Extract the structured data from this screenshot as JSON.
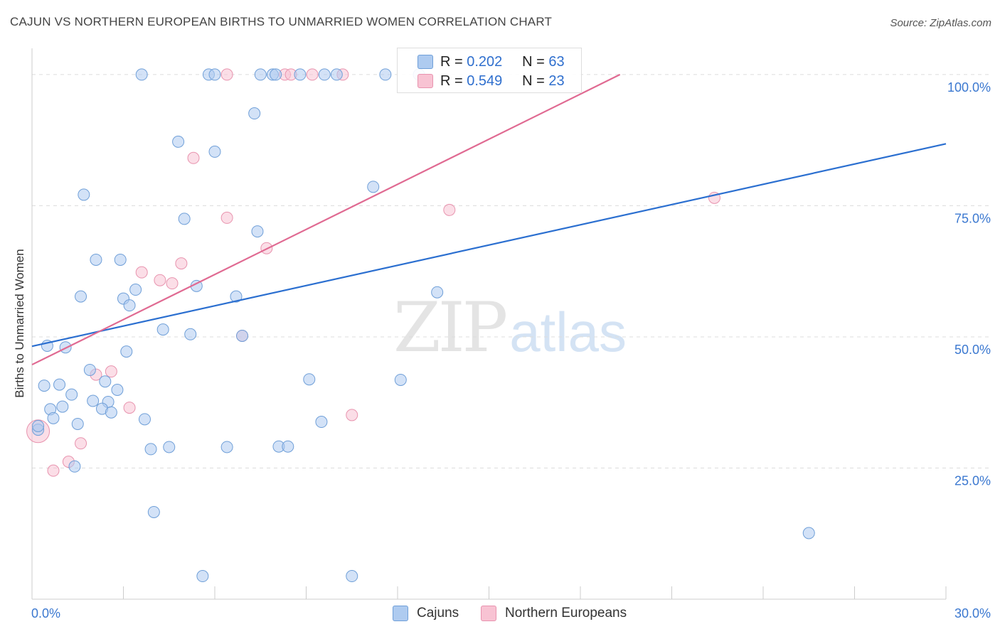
{
  "header": {
    "title": "CAJUN VS NORTHERN EUROPEAN BIRTHS TO UNMARRIED WOMEN CORRELATION CHART",
    "source": "Source: ZipAtlas.com"
  },
  "watermark": {
    "zip": "ZIP",
    "atlas": "atlas"
  },
  "legend": {
    "rows": [
      {
        "r_label": "R =",
        "r_value": "0.202",
        "n_label": "N =",
        "n_value": "63"
      },
      {
        "r_label": "R =",
        "r_value": "0.549",
        "n_label": "N =",
        "n_value": "23"
      }
    ]
  },
  "bottom_legend": {
    "cajuns": "Cajuns",
    "northern": "Northern Europeans"
  },
  "colors": {
    "cajun_fill": "#aecbf0",
    "cajun_stroke": "#6f9fd8",
    "cajun_line": "#2b6fd0",
    "northern_fill": "#f8c3d3",
    "northern_stroke": "#e893ae",
    "northern_line": "#e06a92",
    "tick_label": "#3b78d0",
    "grid": "#dcdcdc"
  },
  "chart_data": {
    "type": "scatter",
    "title": "CAJUN VS NORTHERN EUROPEAN BIRTHS TO UNMARRIED WOMEN CORRELATION CHART",
    "xlabel": "",
    "ylabel": "Births to Unmarried Women",
    "xlim": [
      0,
      30
    ],
    "ylim": [
      0,
      105
    ],
    "x_tick_labels": {
      "left": "0.0%",
      "right": "30.0%"
    },
    "y_ticks": [
      {
        "value": 100,
        "label": "100.0%"
      },
      {
        "value": 75,
        "label": "75.0%"
      },
      {
        "value": 50,
        "label": "50.0%"
      },
      {
        "value": 25,
        "label": "25.0%"
      }
    ],
    "series": [
      {
        "name": "Cajuns",
        "R": 0.202,
        "N": 63,
        "trend": {
          "x": [
            0,
            30
          ],
          "y": [
            48.2,
            86.8
          ]
        },
        "points": [
          [
            3.6,
            100
          ],
          [
            5.8,
            100
          ],
          [
            6.0,
            100
          ],
          [
            7.5,
            100
          ],
          [
            7.9,
            100
          ],
          [
            8.0,
            100
          ],
          [
            8.8,
            100
          ],
          [
            9.6,
            100
          ],
          [
            11.6,
            100
          ],
          [
            12.7,
            100
          ],
          [
            7.3,
            92.6
          ],
          [
            4.8,
            87.2
          ],
          [
            6.0,
            85.3
          ],
          [
            11.2,
            78.6
          ],
          [
            1.7,
            77.1
          ],
          [
            5.0,
            72.5
          ],
          [
            7.4,
            70.1
          ],
          [
            2.1,
            64.7
          ],
          [
            2.9,
            64.7
          ],
          [
            5.4,
            59.7
          ],
          [
            3.4,
            59.0
          ],
          [
            1.6,
            57.7
          ],
          [
            6.7,
            57.7
          ],
          [
            3.0,
            57.3
          ],
          [
            3.2,
            56.0
          ],
          [
            13.3,
            58.5
          ],
          [
            4.3,
            51.4
          ],
          [
            5.2,
            50.5
          ],
          [
            6.9,
            50.2
          ],
          [
            0.5,
            48.3
          ],
          [
            1.1,
            48.0
          ],
          [
            3.1,
            47.2
          ],
          [
            1.9,
            43.7
          ],
          [
            2.4,
            41.5
          ],
          [
            0.4,
            40.7
          ],
          [
            0.9,
            40.9
          ],
          [
            2.8,
            39.9
          ],
          [
            12.1,
            41.8
          ],
          [
            9.1,
            41.9
          ],
          [
            1.3,
            39.0
          ],
          [
            2.0,
            37.8
          ],
          [
            2.5,
            37.6
          ],
          [
            0.6,
            36.2
          ],
          [
            1.0,
            36.7
          ],
          [
            2.3,
            36.3
          ],
          [
            2.6,
            35.6
          ],
          [
            0.7,
            34.5
          ],
          [
            3.7,
            34.3
          ],
          [
            9.5,
            33.8
          ],
          [
            1.5,
            33.4
          ],
          [
            0.2,
            32.3
          ],
          [
            0.2,
            33.0
          ],
          [
            3.9,
            28.6
          ],
          [
            4.5,
            29.0
          ],
          [
            6.4,
            29.0
          ],
          [
            8.1,
            29.1
          ],
          [
            8.4,
            29.1
          ],
          [
            1.4,
            25.3
          ],
          [
            4.0,
            16.6
          ],
          [
            5.6,
            4.4
          ],
          [
            10.5,
            4.4
          ],
          [
            25.5,
            12.6
          ],
          [
            10.0,
            100
          ]
        ]
      },
      {
        "name": "Northern Europeans",
        "R": 0.549,
        "N": 23,
        "trend": {
          "x": [
            0,
            19.3
          ],
          "y": [
            44.7,
            100
          ]
        },
        "points": [
          [
            6.4,
            100
          ],
          [
            8.3,
            100
          ],
          [
            8.5,
            100
          ],
          [
            9.2,
            100
          ],
          [
            10.2,
            100
          ],
          [
            5.3,
            84.1
          ],
          [
            6.4,
            72.7
          ],
          [
            13.7,
            74.2
          ],
          [
            22.4,
            76.5
          ],
          [
            7.7,
            66.9
          ],
          [
            4.9,
            64.0
          ],
          [
            3.6,
            62.3
          ],
          [
            4.2,
            60.8
          ],
          [
            4.6,
            60.2
          ],
          [
            6.9,
            50.2
          ],
          [
            2.6,
            43.4
          ],
          [
            2.1,
            42.8
          ],
          [
            3.2,
            36.5
          ],
          [
            10.5,
            35.1
          ],
          [
            0.2,
            32.0
          ],
          [
            1.6,
            29.7
          ],
          [
            1.2,
            26.2
          ],
          [
            0.7,
            24.5
          ]
        ]
      }
    ]
  }
}
